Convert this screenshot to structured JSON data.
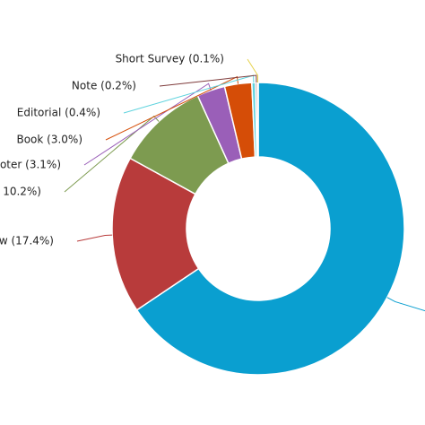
{
  "chart_data": {
    "type": "pie",
    "categories": [
      null,
      "w (17.4%)",
      "10.2%)",
      "oter (3.1%)",
      "Book (3.0%)",
      "Editorial (0.4%)",
      "Note (0.2%)",
      "Short Survey (0.1%)"
    ],
    "values": [
      65.6,
      17.4,
      10.2,
      3.1,
      3.0,
      0.4,
      0.2,
      0.1
    ],
    "colors": [
      "#0a9fd0",
      "#b83b3b",
      "#7d9b50",
      "#9a5fb8",
      "#d54d07",
      "#5fd3de",
      "#7e3a3a",
      "#e6d24a"
    ],
    "donut": true
  }
}
